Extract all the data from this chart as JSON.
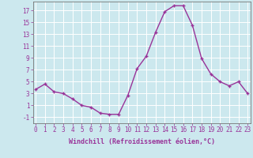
{
  "x": [
    0,
    1,
    2,
    3,
    4,
    5,
    6,
    7,
    8,
    9,
    10,
    11,
    12,
    13,
    14,
    15,
    16,
    17,
    18,
    19,
    20,
    21,
    22,
    23
  ],
  "y": [
    3.7,
    4.6,
    3.3,
    3.0,
    2.1,
    1.0,
    0.7,
    -0.3,
    -0.5,
    -0.5,
    2.7,
    7.2,
    9.3,
    13.3,
    16.8,
    17.8,
    17.8,
    14.5,
    8.9,
    6.3,
    5.0,
    4.3,
    5.0,
    3.0
  ],
  "line_color": "#993399",
  "marker": "+",
  "marker_size": 3,
  "marker_linewidth": 1.0,
  "line_width": 1.0,
  "background_color": "#cce8ee",
  "grid_color": "#ffffff",
  "xlabel": "Windchill (Refroidissement éolien,°C)",
  "ylabel": "",
  "ylim": [
    -2,
    18.5
  ],
  "xlim": [
    -0.3,
    23.3
  ],
  "yticks": [
    -1,
    1,
    3,
    5,
    7,
    9,
    11,
    13,
    15,
    17
  ],
  "xticks": [
    0,
    1,
    2,
    3,
    4,
    5,
    6,
    7,
    8,
    9,
    10,
    11,
    12,
    13,
    14,
    15,
    16,
    17,
    18,
    19,
    20,
    21,
    22,
    23
  ],
  "tick_color": "#993399",
  "label_color": "#993399",
  "tick_fontsize": 5.5,
  "xlabel_fontsize": 6.0
}
